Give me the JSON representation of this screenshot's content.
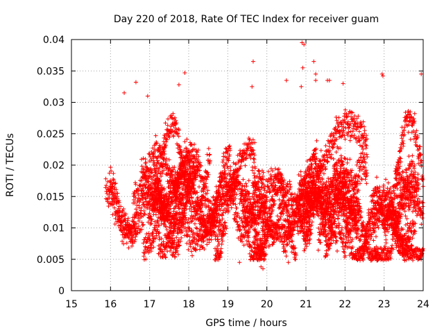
{
  "chart_data": {
    "type": "scatter",
    "title": "Day 220 of 2018, Rate Of TEC Index for receiver guam",
    "xlabel": "GPS time / hours",
    "ylabel": "ROTI / TECUs",
    "xlim": [
      15,
      24
    ],
    "ylim": [
      0,
      0.04
    ],
    "xticks": [
      15,
      16,
      17,
      18,
      19,
      20,
      21,
      22,
      23,
      24
    ],
    "xtick_labels": [
      "15",
      "16",
      "17",
      "18",
      "19",
      "20",
      "21",
      "22",
      "23",
      "24"
    ],
    "yticks": [
      0,
      0.005,
      0.01,
      0.015,
      0.02,
      0.025,
      0.03,
      0.035,
      0.04
    ],
    "ytick_labels": [
      "0",
      "0.005",
      "0.01",
      "0.015",
      "0.02",
      "0.025",
      "0.03",
      "0.035",
      "0.04"
    ],
    "grid": true,
    "marker": "plus",
    "series": [
      {
        "name": "ROTI",
        "color": "#ff0000",
        "x_range": [
          15.75,
          24.0
        ],
        "typical_range": [
          0.006,
          0.03
        ],
        "outliers": [
          {
            "x": 16.35,
            "y": 0.0315
          },
          {
            "x": 16.65,
            "y": 0.0332
          },
          {
            "x": 16.95,
            "y": 0.031
          },
          {
            "x": 17.75,
            "y": 0.0328
          },
          {
            "x": 17.9,
            "y": 0.0347
          },
          {
            "x": 19.65,
            "y": 0.0365
          },
          {
            "x": 19.62,
            "y": 0.0325
          },
          {
            "x": 20.5,
            "y": 0.0335
          },
          {
            "x": 20.9,
            "y": 0.0395
          },
          {
            "x": 20.95,
            "y": 0.0392
          },
          {
            "x": 20.92,
            "y": 0.0355
          },
          {
            "x": 20.88,
            "y": 0.0325
          },
          {
            "x": 21.2,
            "y": 0.0365
          },
          {
            "x": 21.25,
            "y": 0.0345
          },
          {
            "x": 21.25,
            "y": 0.0335
          },
          {
            "x": 21.55,
            "y": 0.0335
          },
          {
            "x": 21.6,
            "y": 0.0335
          },
          {
            "x": 21.95,
            "y": 0.033
          },
          {
            "x": 22.95,
            "y": 0.0345
          },
          {
            "x": 22.97,
            "y": 0.0342
          },
          {
            "x": 23.95,
            "y": 0.0345
          },
          {
            "x": 19.3,
            "y": 0.0045
          },
          {
            "x": 19.85,
            "y": 0.0038
          },
          {
            "x": 19.9,
            "y": 0.0035
          },
          {
            "x": 20.55,
            "y": 0.0045
          },
          {
            "x": 23.95,
            "y": 0.005
          }
        ]
      }
    ]
  }
}
